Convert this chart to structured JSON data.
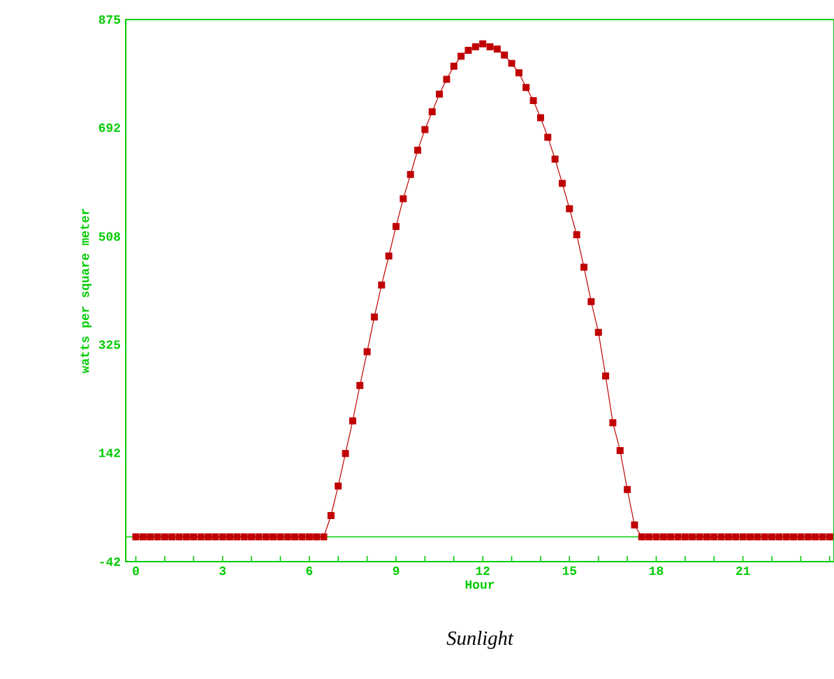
{
  "chart_data": {
    "type": "line",
    "title": "Sunlight",
    "xlabel": "Hour",
    "ylabel": "watts per square meter",
    "x": [
      0,
      0.25,
      0.5,
      0.75,
      1,
      1.25,
      1.5,
      1.75,
      2,
      2.25,
      2.5,
      2.75,
      3,
      3.25,
      3.5,
      3.75,
      4,
      4.25,
      4.5,
      4.75,
      5,
      5.25,
      5.5,
      5.75,
      6,
      6.25,
      6.5,
      6.75,
      7,
      7.25,
      7.5,
      7.75,
      8,
      8.25,
      8.5,
      8.75,
      9,
      9.25,
      9.5,
      9.75,
      10,
      10.25,
      10.5,
      10.75,
      11,
      11.25,
      11.5,
      11.75,
      12,
      12.25,
      12.5,
      12.75,
      13,
      13.25,
      13.5,
      13.75,
      14,
      14.25,
      14.5,
      14.75,
      15,
      15.25,
      15.5,
      15.75,
      16,
      16.25,
      16.5,
      16.75,
      17,
      17.25,
      17.5,
      17.75,
      18,
      18.25,
      18.5,
      18.75,
      19,
      19.25,
      19.5,
      19.75,
      20,
      20.25,
      20.5,
      20.75,
      21,
      21.25,
      21.5,
      21.75,
      22,
      22.25,
      22.5,
      22.75,
      23,
      23.25,
      23.5,
      23.75,
      24
    ],
    "series": [
      {
        "color": "#c00000",
        "values": [
          0,
          0,
          0,
          0,
          0,
          0,
          0,
          0,
          0,
          0,
          0,
          0,
          0,
          0,
          0,
          0,
          0,
          0,
          0,
          0,
          0,
          0,
          0,
          0,
          0,
          0,
          0,
          36,
          86,
          141,
          196,
          256,
          313,
          372,
          426,
          475,
          525,
          572,
          613,
          654,
          689,
          719,
          749,
          774,
          796,
          813,
          823,
          829,
          834,
          829,
          825,
          815,
          801,
          785,
          760,
          738,
          709,
          676,
          639,
          598,
          555,
          511,
          456,
          398,
          346,
          272,
          193,
          146,
          80,
          20,
          0,
          0,
          0,
          0,
          0,
          0,
          0,
          0,
          0,
          0,
          0,
          0,
          0,
          0,
          0,
          0,
          0,
          0,
          0,
          0,
          0,
          0,
          0,
          0,
          0,
          0,
          0
        ]
      }
    ],
    "xlim": [
      -0.35,
      24.15
    ],
    "ylim": [
      -42,
      875
    ],
    "xticks": [
      0,
      {
        "value": 1,
        "label": null
      },
      {
        "value": 2,
        "label": null
      },
      3,
      {
        "value": 4,
        "label": null
      },
      {
        "value": 5,
        "label": null
      },
      6,
      {
        "value": 7,
        "label": null
      },
      {
        "value": 8,
        "label": null
      },
      9,
      {
        "value": 10,
        "label": null
      },
      {
        "value": 11,
        "label": null
      },
      12,
      {
        "value": 13,
        "label": null
      },
      {
        "value": 14,
        "label": null
      },
      15,
      {
        "value": 16,
        "label": null
      },
      {
        "value": 17,
        "label": null
      },
      18,
      {
        "value": 19,
        "label": null
      },
      {
        "value": 20,
        "label": null
      },
      21,
      {
        "value": 22,
        "label": null
      },
      {
        "value": 23,
        "label": null
      },
      {
        "value": 24,
        "label": null
      }
    ],
    "yticks": [
      -42,
      142,
      325,
      508,
      692,
      875
    ],
    "ref_lines": [
      {
        "axis": "y",
        "value": 0,
        "color": "#00cc00"
      }
    ],
    "marker": "square",
    "line_style": "solid",
    "grid": false
  }
}
